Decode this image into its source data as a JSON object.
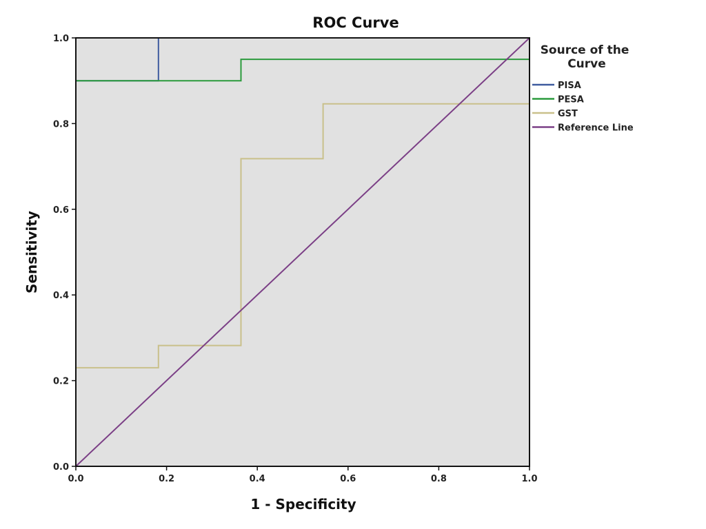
{
  "chart_data": {
    "type": "line",
    "title": "ROC Curve",
    "xlabel": "1 - Specificity",
    "ylabel": "Sensitivity",
    "xlim": [
      0,
      1
    ],
    "ylim": [
      0,
      1
    ],
    "x_ticks": [
      "0.0",
      "0.2",
      "0.4",
      "0.6",
      "0.8",
      "1.0"
    ],
    "y_ticks": [
      "0.0",
      "0.2",
      "0.4",
      "0.6",
      "0.8",
      "1.0"
    ],
    "plot_background": "#e1e1e1",
    "grid": false,
    "legend_position": "right",
    "legend_title": "Source of the Curve",
    "legend_title_lines": [
      "Source of the",
      "Curve"
    ],
    "series": [
      {
        "name": "PISA",
        "color": "#3d5a9e",
        "points": [
          [
            0,
            0
          ],
          [
            0,
            0.9
          ],
          [
            0.182,
            0.9
          ],
          [
            0.182,
            1.0
          ]
        ]
      },
      {
        "name": "PESA",
        "color": "#2a9a3c",
        "points": [
          [
            0,
            0
          ],
          [
            0,
            0.9
          ],
          [
            0.364,
            0.9
          ],
          [
            0.364,
            0.95
          ],
          [
            1.0,
            0.95
          ]
        ]
      },
      {
        "name": "GST",
        "color": "#c9c08a",
        "points": [
          [
            0,
            0.23
          ],
          [
            0.182,
            0.23
          ],
          [
            0.182,
            0.282
          ],
          [
            0.364,
            0.282
          ],
          [
            0.364,
            0.718
          ],
          [
            0.545,
            0.718
          ],
          [
            0.545,
            0.846
          ],
          [
            1.0,
            0.846
          ]
        ]
      },
      {
        "name": "Reference Line",
        "color": "#7b3f86",
        "points": [
          [
            0,
            0
          ],
          [
            1,
            1
          ]
        ]
      }
    ]
  }
}
